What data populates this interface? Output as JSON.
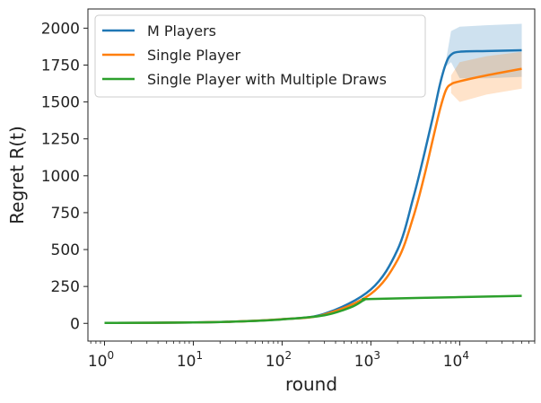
{
  "chart_data": {
    "type": "line",
    "xlabel": "round",
    "ylabel": "Regret R(t)",
    "xscale": "log",
    "xlim": [
      0.65,
      70000
    ],
    "ylim": [
      -120,
      2130
    ],
    "x_ticks": [
      {
        "value": 1,
        "base": "10",
        "exp": "0"
      },
      {
        "value": 10,
        "base": "10",
        "exp": "1"
      },
      {
        "value": 100,
        "base": "10",
        "exp": "2"
      },
      {
        "value": 1000,
        "base": "10",
        "exp": "3"
      },
      {
        "value": 10000,
        "base": "10",
        "exp": "4"
      }
    ],
    "y_ticks": [
      0,
      250,
      500,
      750,
      1000,
      1250,
      1500,
      1750,
      2000
    ],
    "legend_position": "top-left",
    "series": [
      {
        "name": "M Players",
        "color": "#1f77b4",
        "band_color": "#1f77b4",
        "points": [
          [
            1,
            3
          ],
          [
            10,
            6
          ],
          [
            30,
            12
          ],
          [
            100,
            28
          ],
          [
            300,
            65
          ],
          [
            1000,
            230
          ],
          [
            2000,
            500
          ],
          [
            3000,
            850
          ],
          [
            4000,
            1150
          ],
          [
            5000,
            1400
          ],
          [
            6000,
            1620
          ],
          [
            7000,
            1760
          ],
          [
            8000,
            1820
          ],
          [
            10000,
            1840
          ],
          [
            20000,
            1845
          ],
          [
            50000,
            1850
          ]
        ],
        "band": [
          [
            7000,
            1740,
            1780
          ],
          [
            8000,
            1770,
            1980
          ],
          [
            10000,
            1660,
            2010
          ],
          [
            20000,
            1660,
            2020
          ],
          [
            50000,
            1670,
            2030
          ]
        ]
      },
      {
        "name": "Single Player",
        "color": "#ff7f0e",
        "band_color": "#ff7f0e",
        "points": [
          [
            1,
            3
          ],
          [
            10,
            6
          ],
          [
            30,
            12
          ],
          [
            100,
            28
          ],
          [
            300,
            60
          ],
          [
            1000,
            200
          ],
          [
            2000,
            430
          ],
          [
            3000,
            720
          ],
          [
            4000,
            1000
          ],
          [
            5000,
            1250
          ],
          [
            6000,
            1450
          ],
          [
            7000,
            1580
          ],
          [
            8000,
            1620
          ],
          [
            10000,
            1640
          ],
          [
            20000,
            1680
          ],
          [
            50000,
            1725
          ]
        ],
        "band": [
          [
            8000,
            1560,
            1680
          ],
          [
            10000,
            1500,
            1770
          ],
          [
            20000,
            1550,
            1810
          ],
          [
            50000,
            1590,
            1840
          ]
        ]
      },
      {
        "name": "Single Player with Multiple Draws",
        "color": "#2ca02c",
        "points": [
          [
            1,
            3
          ],
          [
            10,
            6
          ],
          [
            30,
            12
          ],
          [
            100,
            27
          ],
          [
            300,
            55
          ],
          [
            600,
            110
          ],
          [
            850,
            160
          ],
          [
            1000,
            165
          ],
          [
            10000,
            178
          ],
          [
            50000,
            186
          ]
        ]
      }
    ]
  }
}
